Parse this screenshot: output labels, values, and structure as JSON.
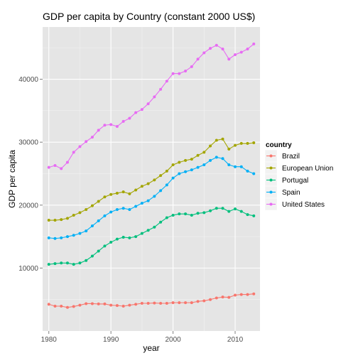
{
  "chart_data": {
    "type": "line",
    "title": "GDP per capita by Country (constant 2000 US$)",
    "xlabel": "year",
    "ylabel": "GDP per capita",
    "xlim": [
      1979,
      2014
    ],
    "ylim": [
      0,
      48300
    ],
    "x_ticks": [
      1980,
      1990,
      2000,
      2010
    ],
    "y_ticks": [
      10000,
      20000,
      30000,
      40000
    ],
    "grid": true,
    "legend_title": "country",
    "legend_position": "right",
    "x": [
      1980,
      1981,
      1982,
      1983,
      1984,
      1985,
      1986,
      1987,
      1988,
      1989,
      1990,
      1991,
      1992,
      1993,
      1994,
      1995,
      1996,
      1997,
      1998,
      1999,
      2000,
      2001,
      2002,
      2003,
      2004,
      2005,
      2006,
      2007,
      2008,
      2009,
      2010,
      2011,
      2012,
      2013
    ],
    "series": [
      {
        "name": "Brazil",
        "color": "#F8766D",
        "values": [
          4250,
          3950,
          3950,
          3750,
          3900,
          4100,
          4350,
          4350,
          4300,
          4300,
          4100,
          4050,
          3950,
          4100,
          4250,
          4400,
          4400,
          4450,
          4400,
          4400,
          4500,
          4500,
          4500,
          4500,
          4700,
          4800,
          5000,
          5250,
          5400,
          5350,
          5700,
          5800,
          5800,
          5900
        ]
      },
      {
        "name": "European Union",
        "color": "#A3A500",
        "values": [
          17600,
          17600,
          17700,
          17900,
          18400,
          18800,
          19300,
          19900,
          20600,
          21300,
          21700,
          21900,
          22100,
          21800,
          22400,
          23000,
          23400,
          24000,
          24700,
          25400,
          26400,
          26800,
          27100,
          27300,
          27900,
          28400,
          29400,
          30300,
          30500,
          28900,
          29500,
          29800,
          29800,
          29900
        ]
      },
      {
        "name": "Portugal",
        "color": "#00BF7D",
        "values": [
          10600,
          10700,
          10800,
          10800,
          10600,
          10800,
          11200,
          11900,
          12700,
          13500,
          14100,
          14600,
          14900,
          14800,
          15000,
          15500,
          16000,
          16500,
          17300,
          18000,
          18400,
          18600,
          18600,
          18400,
          18700,
          18800,
          19100,
          19500,
          19500,
          19000,
          19400,
          19000,
          18500,
          18300
        ]
      },
      {
        "name": "Spain",
        "color": "#00B0F6",
        "values": [
          14800,
          14700,
          14800,
          15000,
          15200,
          15500,
          15900,
          16700,
          17500,
          18300,
          18900,
          19300,
          19500,
          19300,
          19800,
          20300,
          20700,
          21400,
          22300,
          23200,
          24300,
          25000,
          25300,
          25600,
          26000,
          26400,
          27100,
          27600,
          27400,
          26400,
          26100,
          26100,
          25400,
          25000
        ]
      },
      {
        "name": "United States",
        "color": "#E76BF3",
        "values": [
          26000,
          26300,
          25800,
          26800,
          28400,
          29300,
          30100,
          30800,
          31900,
          32700,
          32800,
          32500,
          33300,
          33800,
          34700,
          35200,
          36100,
          37200,
          38400,
          39700,
          40900,
          40900,
          41300,
          42000,
          43200,
          44200,
          44900,
          45400,
          44800,
          43200,
          43900,
          44300,
          44800,
          45600
        ]
      }
    ]
  }
}
